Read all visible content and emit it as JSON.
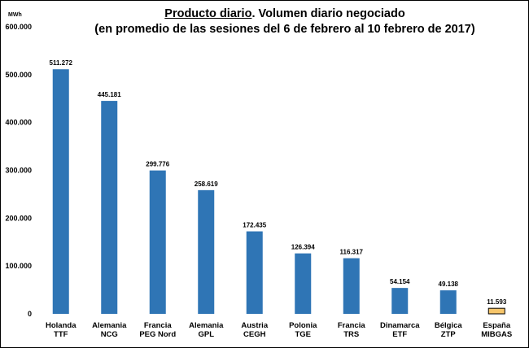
{
  "title": {
    "underlined": "Producto diario",
    "rest": ". Volumen diario negociado",
    "line2": "(en promedio de las sesiones del 6 de febrero al 10 febrero de 2017)"
  },
  "colors": {
    "bar": "#2f75b5",
    "highlight": "#f7c66b",
    "highlight_stroke": "#000000"
  },
  "chart_data": {
    "type": "bar",
    "title": "Producto diario. Volumen diario negociado (en promedio de las sesiones del 6 de febrero al 10 febrero de 2017)",
    "ylabel": "MWh",
    "ylim": [
      0,
      600000
    ],
    "yticks": [
      0,
      100000,
      200000,
      300000,
      400000,
      500000,
      600000
    ],
    "ytick_labels": [
      "0",
      "100.000",
      "200.000",
      "300.000",
      "400.000",
      "500.000",
      "600.000"
    ],
    "grid": false,
    "categories": [
      [
        "Holanda",
        "TTF"
      ],
      [
        "Alemania",
        "NCG"
      ],
      [
        "Francia",
        "PEG Nord"
      ],
      [
        "Alemania",
        "GPL"
      ],
      [
        "Austria",
        "CEGH"
      ],
      [
        "Polonia",
        "TGE"
      ],
      [
        "Francia",
        "TRS"
      ],
      [
        "Dinamarca",
        "ETF"
      ],
      [
        "Bélgica",
        "ZTP"
      ],
      [
        "España",
        "MIBGAS"
      ]
    ],
    "values": [
      511272,
      445181,
      299776,
      258619,
      172435,
      126394,
      116317,
      54154,
      49138,
      11593
    ],
    "value_labels": [
      "511.272",
      "445.181",
      "299.776",
      "258.619",
      "172.435",
      "126.394",
      "116.317",
      "54.154",
      "49.138",
      "11.593"
    ],
    "highlight_index": 9
  }
}
